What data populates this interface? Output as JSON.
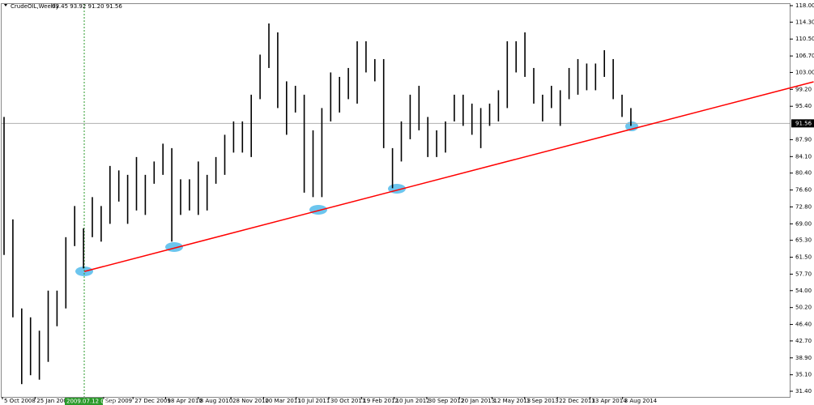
{
  "chart_data": {
    "type": "range-bar",
    "header": {
      "symbol": "CrudeOIL,Weekly",
      "quote": "93.45 93.92 91.20 91.56"
    },
    "x_labels": [
      "5 Oct 2008",
      "25 Jan 2009",
      "Sep 2009",
      "27 Dec 2009",
      "18 Apr 2010",
      "8 Aug 2010",
      "28 Nov 2010",
      "20 Mar 2011",
      "10 Jul 2011",
      "30 Oct 2011",
      "19 Feb 2012",
      "10 Jun 2012",
      "30 Sep 2012",
      "20 Jan 2013",
      "12 May 2013",
      "1 Sep 2013",
      "22 Dec 2013",
      "13 Apr 2014",
      "3 Aug 2014"
    ],
    "crosshair_label": "2009.07.12 00:00",
    "high": [
      93,
      70,
      50,
      48,
      45,
      54,
      54,
      66,
      73,
      68,
      75,
      73,
      82,
      81,
      80,
      84,
      80,
      83,
      87,
      86,
      79,
      79,
      83,
      80,
      84,
      89,
      92,
      92,
      98,
      107,
      114,
      112,
      101,
      100,
      98,
      90,
      95,
      103,
      102,
      104,
      110,
      110,
      106,
      106,
      86,
      92,
      98,
      100,
      93,
      90,
      92,
      98,
      98,
      96,
      95,
      96,
      99,
      110,
      110,
      112,
      104,
      98,
      100,
      99,
      104,
      106,
      105,
      105,
      108,
      106,
      98,
      95
    ],
    "low": [
      62,
      48,
      33,
      35,
      34,
      38,
      46,
      50,
      64,
      59,
      66,
      65,
      69,
      74,
      69,
      72,
      71,
      78,
      80,
      65,
      71,
      72,
      71,
      72,
      78,
      80,
      85,
      85,
      84,
      97,
      104,
      95,
      89,
      94,
      76,
      75,
      75,
      92,
      94,
      97,
      96,
      103,
      101,
      86,
      77,
      83,
      88,
      90,
      84,
      84,
      85,
      92,
      91,
      89,
      86,
      91,
      92,
      95,
      103,
      102,
      96,
      92,
      95,
      91,
      97,
      98,
      99,
      99,
      102,
      97,
      93,
      91
    ],
    "bar_color": "#000000",
    "trendline": {
      "x": [
        9.1,
        91.7
      ],
      "y": [
        58.3,
        100.9
      ],
      "color": "#ff0000"
    },
    "current_price": 91.56,
    "ylim": [
      30.13,
      118.36
    ],
    "yticks": [
      {
        "value": 118.0,
        "label": "118.00"
      },
      {
        "value": 114.3,
        "label": "114.30"
      },
      {
        "value": 110.5,
        "label": "110.50"
      },
      {
        "value": 106.7,
        "label": "106.70"
      },
      {
        "value": 103.0,
        "label": "103.00"
      },
      {
        "value": 99.2,
        "label": "99.20"
      },
      {
        "value": 95.4,
        "label": "95.40"
      },
      {
        "value": 87.9,
        "label": "87.90"
      },
      {
        "value": 84.1,
        "label": "84.10"
      },
      {
        "value": 80.4,
        "label": "80.40"
      },
      {
        "value": 76.6,
        "label": "76.60"
      },
      {
        "value": 72.8,
        "label": "72.80"
      },
      {
        "value": 69.0,
        "label": "69.00"
      },
      {
        "value": 65.3,
        "label": "65.30"
      },
      {
        "value": 61.5,
        "label": "61.50"
      },
      {
        "value": 57.7,
        "label": "57.70"
      },
      {
        "value": 54.0,
        "label": "54.00"
      },
      {
        "value": 50.2,
        "label": "50.20"
      },
      {
        "value": 46.4,
        "label": "46.40"
      },
      {
        "value": 42.7,
        "label": "42.70"
      },
      {
        "value": 38.9,
        "label": "38.90"
      },
      {
        "value": 35.1,
        "label": "35.10"
      },
      {
        "value": 31.4,
        "label": "31.40"
      }
    ]
  }
}
